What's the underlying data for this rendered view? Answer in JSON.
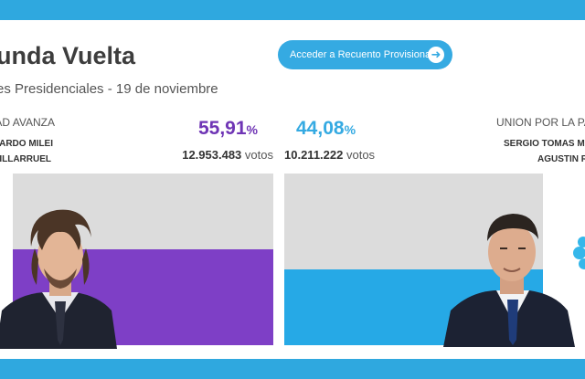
{
  "header": {
    "title": "unda Vuelta",
    "subtitle": "es Presidenciales - 19 de noviembre",
    "button_label": "Acceder a Recuento Provisional",
    "button_icon": "arrow-right-icon"
  },
  "candidates": [
    {
      "party": "AD AVANZA",
      "name_line1": "ARDO MILEI",
      "name_line2": "VILLARRUEL",
      "percent": "55,91",
      "percent_sign": "%",
      "votes": "12.953.483",
      "votes_label": "votos",
      "share": 0.5591,
      "color": "#7e3fc6",
      "pct_color": "#6f35b5"
    },
    {
      "party": "UNION POR LA PA",
      "name_line1": "SERGIO TOMAS MA",
      "name_line2": "AGUSTIN R",
      "percent": "44,08",
      "percent_sign": "%",
      "votes": "10.211.222",
      "votes_label": "votos",
      "share": 0.4408,
      "color": "#26a9e6",
      "pct_color": "#35aae2"
    }
  ],
  "colors": {
    "frame": "#2fa8df",
    "bar_background": "#dcdcdc",
    "button": "#35aae2"
  }
}
